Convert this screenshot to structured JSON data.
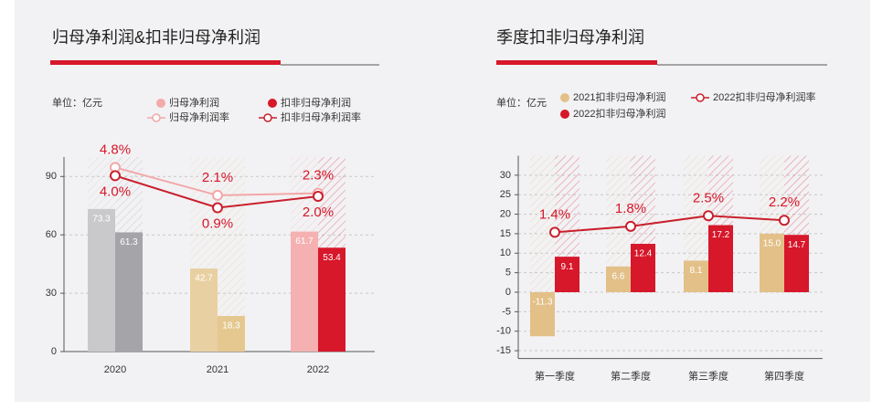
{
  "chart_data": [
    {
      "type": "bar",
      "title": "归母净利润&扣非归母净利润",
      "unit": "单位：亿元",
      "categories": [
        "2020",
        "2021",
        "2022"
      ],
      "series": [
        {
          "name": "归母净利润",
          "color": "#f5aaaa",
          "colors": [
            "#c9c9cb",
            "#e9d0a2",
            "#f5b1b1"
          ],
          "values": [
            73.3,
            42.7,
            61.7
          ]
        },
        {
          "name": "扣非归母净利润",
          "color": "#d7172a",
          "colors": [
            "#a5a5a9",
            "#e5c890",
            "#d7172a"
          ],
          "values": [
            61.3,
            18.3,
            53.4
          ]
        },
        {
          "name": "归母净利润率",
          "type": "line",
          "axis": "y2",
          "color": "#f2a7a7",
          "values": [
            4.8,
            2.1,
            2.3
          ],
          "value_labels": [
            "4.8%",
            "2.1%",
            "2.3%"
          ]
        },
        {
          "name": "扣非归母净利润率",
          "type": "line",
          "axis": "y2",
          "color": "#c9202c",
          "values": [
            4.0,
            0.9,
            2.0
          ],
          "value_labels": [
            "4.0%",
            "0.9%",
            "2.0%"
          ]
        }
      ],
      "ylim": [
        0,
        100
      ],
      "yticks": [
        0,
        30,
        60,
        90
      ],
      "y2lim": [
        -13,
        5.8
      ],
      "grid": true
    },
    {
      "type": "bar",
      "title": "季度扣非归母净利润",
      "unit": "单位：亿元",
      "categories": [
        "第一季度",
        "第二季度",
        "第三季度",
        "第四季度"
      ],
      "series": [
        {
          "name": "2021扣非归母净利润",
          "color": "#e3c088",
          "values": [
            -11.3,
            6.6,
            8.1,
            15.0
          ],
          "value_labels": [
            "-11.3",
            "6.6",
            "8.1",
            "15.0"
          ]
        },
        {
          "name": "2022扣非归母净利润",
          "color": "#d7172a",
          "values": [
            9.1,
            12.4,
            17.2,
            14.7
          ]
        },
        {
          "name": "2022扣非归母净利润率",
          "type": "line",
          "axis": "y2",
          "color": "#c9202c",
          "values": [
            1.4,
            1.8,
            2.5,
            2.2
          ],
          "value_labels": [
            "1.4%",
            "1.8%",
            "2.5%",
            "2.2%"
          ]
        }
      ],
      "ylim": [
        -17,
        35
      ],
      "yticks": [
        -15,
        -10,
        -5,
        0,
        5,
        10,
        15,
        20,
        25,
        30
      ],
      "y2lim": [
        -7,
        6.5
      ],
      "grid": true
    }
  ]
}
